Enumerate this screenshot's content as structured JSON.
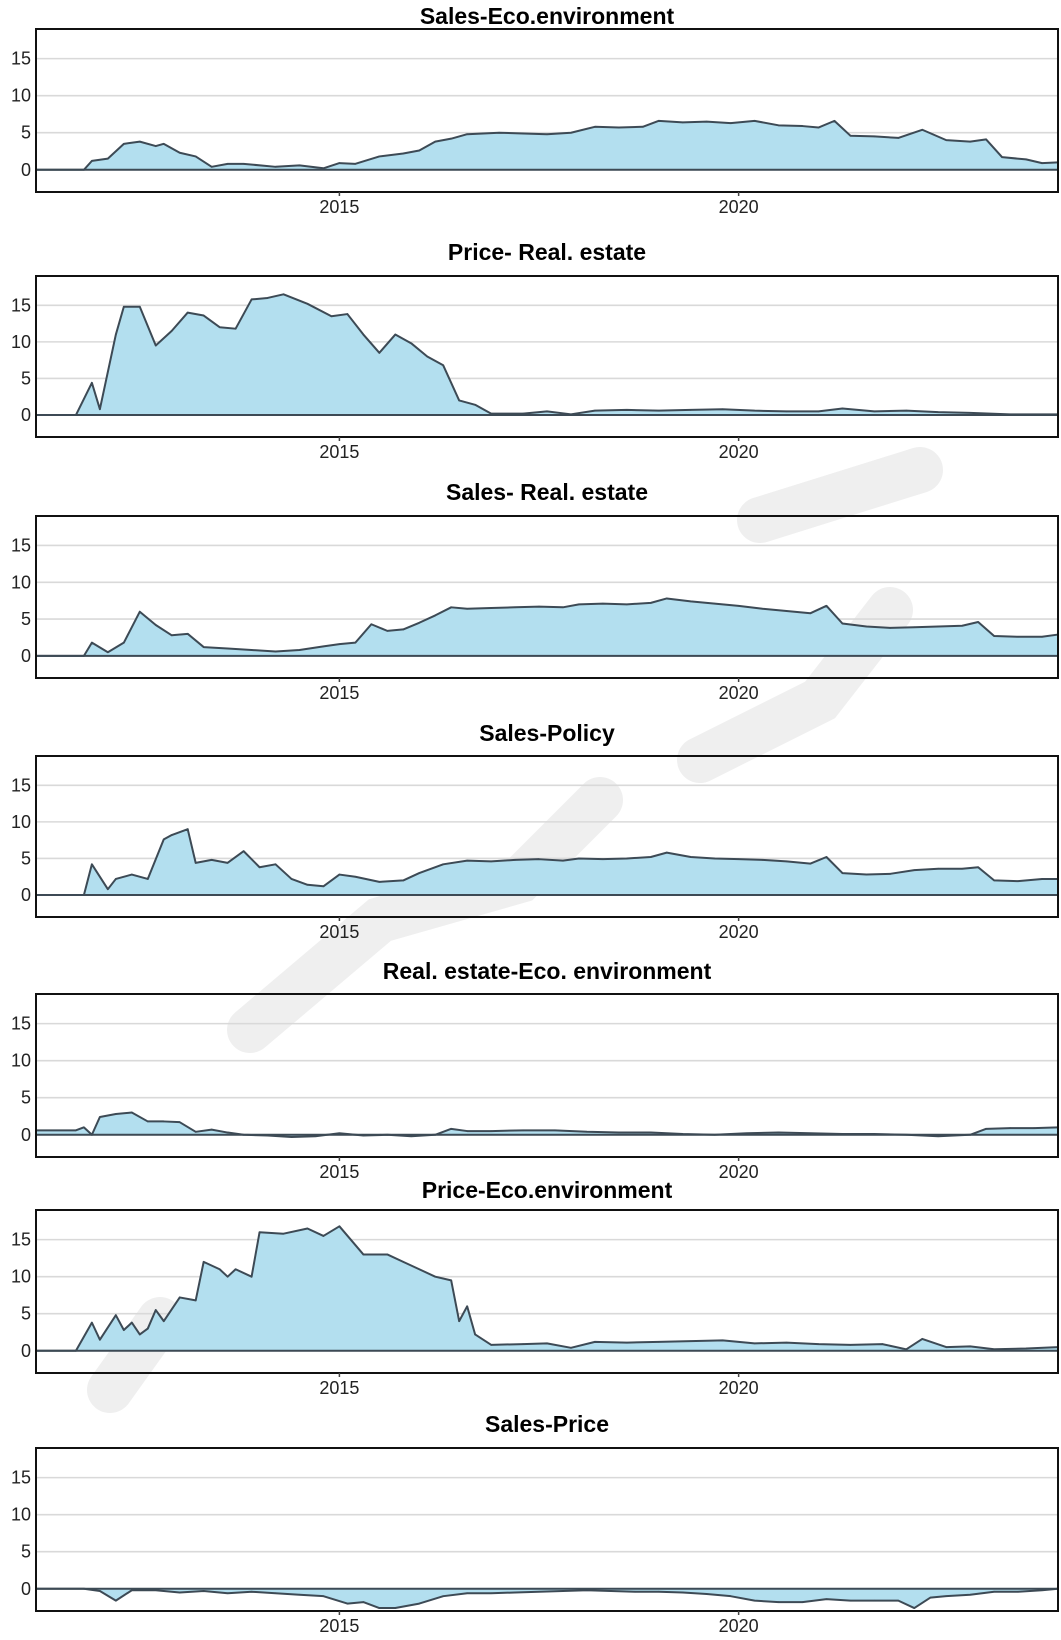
{
  "figure": {
    "background": "#ffffff",
    "fill_color": "#b3dfef",
    "line_color": "#3d4a55",
    "grid_color": "#d9d9d9"
  },
  "chart_data": [
    {
      "type": "area",
      "title": "Sales-Eco.environment",
      "xlim": [
        2011.2,
        2024.0
      ],
      "ylim": [
        -3,
        19
      ],
      "yticks": [
        0,
        5,
        10,
        15
      ],
      "xticks": [
        2015,
        2020
      ],
      "grid": true,
      "x": [
        2011.2,
        2011.8,
        2011.9,
        2012.1,
        2012.3,
        2012.5,
        2012.7,
        2012.8,
        2013.0,
        2013.2,
        2013.4,
        2013.6,
        2013.8,
        2014.2,
        2014.5,
        2014.8,
        2015.0,
        2015.2,
        2015.5,
        2015.8,
        2016.0,
        2016.2,
        2016.4,
        2016.6,
        2016.8,
        2017.0,
        2017.3,
        2017.6,
        2017.9,
        2018.2,
        2018.5,
        2018.8,
        2019.0,
        2019.3,
        2019.6,
        2019.9,
        2020.2,
        2020.5,
        2020.8,
        2021.0,
        2021.2,
        2021.4,
        2021.7,
        2022.0,
        2022.3,
        2022.6,
        2022.9,
        2023.1,
        2023.3,
        2023.6,
        2023.8,
        2024.0
      ],
      "y": [
        0,
        0,
        1.2,
        1.5,
        3.5,
        3.8,
        3.2,
        3.5,
        2.3,
        1.8,
        0.4,
        0.8,
        0.8,
        0.4,
        0.6,
        0.2,
        0.9,
        0.8,
        1.8,
        2.2,
        2.6,
        3.8,
        4.2,
        4.8,
        4.9,
        5.0,
        4.9,
        4.8,
        5.0,
        5.8,
        5.7,
        5.8,
        6.6,
        6.4,
        6.5,
        6.3,
        6.6,
        6.0,
        5.9,
        5.7,
        6.6,
        4.6,
        4.5,
        4.3,
        5.4,
        4.0,
        3.8,
        4.1,
        1.7,
        1.4,
        0.9,
        1.0
      ]
    },
    {
      "type": "area",
      "title": "Price- Real. estate",
      "xlim": [
        2011.2,
        2024.0
      ],
      "ylim": [
        -3,
        19
      ],
      "yticks": [
        0,
        5,
        10,
        15
      ],
      "xticks": [
        2015,
        2020
      ],
      "grid": true,
      "x": [
        2011.2,
        2011.7,
        2011.9,
        2012.0,
        2012.2,
        2012.3,
        2012.5,
        2012.7,
        2012.9,
        2013.1,
        2013.3,
        2013.5,
        2013.7,
        2013.9,
        2014.1,
        2014.3,
        2014.6,
        2014.9,
        2015.1,
        2015.3,
        2015.5,
        2015.7,
        2015.9,
        2016.1,
        2016.3,
        2016.5,
        2016.7,
        2016.9,
        2017.3,
        2017.6,
        2017.9,
        2018.2,
        2018.6,
        2019.0,
        2019.4,
        2019.8,
        2020.2,
        2020.6,
        2021.0,
        2021.3,
        2021.7,
        2022.1,
        2022.5,
        2022.9,
        2023.4,
        2024.0
      ],
      "y": [
        0,
        0,
        4.4,
        0.8,
        11.0,
        14.8,
        14.8,
        9.5,
        11.5,
        14.0,
        13.6,
        12.0,
        11.8,
        15.8,
        16.0,
        16.5,
        15.2,
        13.5,
        13.8,
        11.0,
        8.5,
        11.0,
        9.8,
        8.0,
        6.8,
        2.0,
        1.4,
        0.2,
        0.2,
        0.5,
        0.1,
        0.6,
        0.7,
        0.6,
        0.7,
        0.8,
        0.6,
        0.5,
        0.5,
        0.9,
        0.5,
        0.6,
        0.4,
        0.3,
        0.1,
        0.1
      ]
    },
    {
      "type": "area",
      "title": "Sales- Real. estate",
      "xlim": [
        2011.2,
        2024.0
      ],
      "ylim": [
        -3,
        19
      ],
      "yticks": [
        0,
        5,
        10,
        15
      ],
      "xticks": [
        2015,
        2020
      ],
      "grid": true,
      "x": [
        2011.2,
        2011.8,
        2011.9,
        2012.1,
        2012.3,
        2012.5,
        2012.7,
        2012.9,
        2013.1,
        2013.3,
        2013.6,
        2013.9,
        2014.2,
        2014.5,
        2014.8,
        2015.0,
        2015.2,
        2015.4,
        2015.6,
        2015.8,
        2016.0,
        2016.2,
        2016.4,
        2016.6,
        2016.9,
        2017.2,
        2017.5,
        2017.8,
        2018.0,
        2018.3,
        2018.6,
        2018.9,
        2019.1,
        2019.4,
        2019.7,
        2020.0,
        2020.3,
        2020.6,
        2020.9,
        2021.1,
        2021.3,
        2021.6,
        2021.9,
        2022.2,
        2022.5,
        2022.8,
        2023.0,
        2023.2,
        2023.5,
        2023.8,
        2024.0
      ],
      "y": [
        0,
        0,
        1.8,
        0.5,
        1.8,
        6.0,
        4.2,
        2.8,
        3.0,
        1.2,
        1.0,
        0.8,
        0.6,
        0.8,
        1.3,
        1.6,
        1.8,
        4.3,
        3.4,
        3.6,
        4.5,
        5.5,
        6.6,
        6.4,
        6.5,
        6.6,
        6.7,
        6.6,
        7.0,
        7.1,
        7.0,
        7.2,
        7.8,
        7.4,
        7.1,
        6.8,
        6.4,
        6.1,
        5.8,
        6.8,
        4.4,
        4.0,
        3.8,
        3.9,
        4.0,
        4.1,
        4.6,
        2.7,
        2.6,
        2.6,
        2.9
      ]
    },
    {
      "type": "area",
      "title": "Sales-Policy",
      "xlim": [
        2011.2,
        2024.0
      ],
      "ylim": [
        -3,
        19
      ],
      "yticks": [
        0,
        5,
        10,
        15
      ],
      "xticks": [
        2015,
        2020
      ],
      "grid": true,
      "x": [
        2011.2,
        2011.8,
        2011.9,
        2012.1,
        2012.2,
        2012.4,
        2012.6,
        2012.8,
        2012.9,
        2013.1,
        2013.2,
        2013.4,
        2013.6,
        2013.8,
        2014.0,
        2014.2,
        2014.4,
        2014.6,
        2014.8,
        2015.0,
        2015.2,
        2015.5,
        2015.8,
        2016.0,
        2016.3,
        2016.6,
        2016.9,
        2017.2,
        2017.5,
        2017.8,
        2018.0,
        2018.3,
        2018.6,
        2018.9,
        2019.1,
        2019.4,
        2019.7,
        2020.0,
        2020.3,
        2020.6,
        2020.9,
        2021.1,
        2021.3,
        2021.6,
        2021.9,
        2022.2,
        2022.5,
        2022.8,
        2023.0,
        2023.2,
        2023.5,
        2023.8,
        2024.0
      ],
      "y": [
        0,
        0,
        4.2,
        0.8,
        2.2,
        2.8,
        2.2,
        7.6,
        8.2,
        9.0,
        4.4,
        4.8,
        4.4,
        6.0,
        3.8,
        4.2,
        2.2,
        1.4,
        1.2,
        2.8,
        2.5,
        1.8,
        2.0,
        3.0,
        4.2,
        4.7,
        4.6,
        4.8,
        4.9,
        4.7,
        5.0,
        4.9,
        5.0,
        5.2,
        5.8,
        5.2,
        5.0,
        4.9,
        4.8,
        4.6,
        4.3,
        5.2,
        3.0,
        2.8,
        2.9,
        3.4,
        3.6,
        3.6,
        3.8,
        2.0,
        1.9,
        2.2,
        2.2
      ]
    },
    {
      "type": "area",
      "title": "Real. estate-Eco. environment",
      "xlim": [
        2011.2,
        2024.0
      ],
      "ylim": [
        -3,
        19
      ],
      "yticks": [
        0,
        5,
        10,
        15
      ],
      "xticks": [
        2015,
        2020
      ],
      "grid": true,
      "x": [
        2011.2,
        2011.7,
        2011.8,
        2011.9,
        2012.0,
        2012.2,
        2012.4,
        2012.6,
        2012.8,
        2013.0,
        2013.2,
        2013.4,
        2013.6,
        2013.8,
        2014.1,
        2014.4,
        2014.7,
        2015.0,
        2015.3,
        2015.6,
        2015.9,
        2016.2,
        2016.4,
        2016.6,
        2016.9,
        2017.3,
        2017.7,
        2018.1,
        2018.5,
        2018.9,
        2019.3,
        2019.7,
        2020.1,
        2020.5,
        2020.9,
        2021.3,
        2021.7,
        2022.1,
        2022.5,
        2022.9,
        2023.1,
        2023.4,
        2023.7,
        2024.0
      ],
      "y": [
        0.6,
        0.6,
        1.0,
        0.0,
        2.4,
        2.8,
        3.0,
        1.8,
        1.8,
        1.7,
        0.4,
        0.7,
        0.3,
        0.0,
        -0.1,
        -0.3,
        -0.2,
        0.2,
        -0.1,
        0.0,
        -0.2,
        0.0,
        0.8,
        0.5,
        0.5,
        0.6,
        0.6,
        0.4,
        0.3,
        0.3,
        0.1,
        0.0,
        0.2,
        0.3,
        0.2,
        0.1,
        0.1,
        0.0,
        -0.2,
        0.0,
        0.8,
        0.9,
        0.9,
        1.0
      ]
    },
    {
      "type": "area",
      "title": "Price-Eco.environment",
      "xlim": [
        2011.2,
        2024.0
      ],
      "ylim": [
        -3,
        19
      ],
      "yticks": [
        0,
        5,
        10,
        15
      ],
      "xticks": [
        2015,
        2020
      ],
      "grid": true,
      "x": [
        2011.2,
        2011.7,
        2011.9,
        2012.0,
        2012.2,
        2012.3,
        2012.4,
        2012.5,
        2012.6,
        2012.7,
        2012.8,
        2013.0,
        2013.2,
        2013.3,
        2013.5,
        2013.6,
        2013.7,
        2013.9,
        2014.0,
        2014.3,
        2014.6,
        2014.8,
        2015.0,
        2015.3,
        2015.6,
        2015.8,
        2016.0,
        2016.2,
        2016.4,
        2016.5,
        2016.6,
        2016.7,
        2016.9,
        2017.3,
        2017.6,
        2017.9,
        2018.2,
        2018.6,
        2019.0,
        2019.4,
        2019.8,
        2020.2,
        2020.6,
        2021.0,
        2021.4,
        2021.8,
        2022.1,
        2022.3,
        2022.6,
        2022.9,
        2023.2,
        2023.6,
        2024.0
      ],
      "y": [
        0,
        0,
        3.8,
        1.5,
        4.8,
        2.8,
        3.8,
        2.2,
        3.0,
        5.5,
        4.0,
        7.2,
        6.8,
        12.0,
        11.0,
        10.0,
        11.0,
        10.0,
        16.0,
        15.8,
        16.5,
        15.5,
        16.8,
        13.0,
        13.0,
        12.0,
        11.0,
        10.0,
        9.5,
        4.0,
        6.0,
        2.2,
        0.8,
        0.9,
        1.0,
        0.4,
        1.2,
        1.1,
        1.2,
        1.3,
        1.4,
        1.0,
        1.1,
        0.9,
        0.8,
        0.9,
        0.2,
        1.6,
        0.5,
        0.6,
        0.2,
        0.3,
        0.5
      ]
    },
    {
      "type": "area",
      "title": "Sales-Price",
      "xlim": [
        2011.2,
        2024.0
      ],
      "ylim": [
        -3,
        19
      ],
      "yticks": [
        0,
        5,
        10,
        15
      ],
      "xticks": [
        2015,
        2020
      ],
      "grid": true,
      "x": [
        2011.2,
        2011.8,
        2012.0,
        2012.2,
        2012.4,
        2012.7,
        2013.0,
        2013.3,
        2013.6,
        2013.9,
        2014.2,
        2014.5,
        2014.8,
        2015.1,
        2015.3,
        2015.5,
        2015.7,
        2016.0,
        2016.3,
        2016.6,
        2016.9,
        2017.2,
        2017.5,
        2017.8,
        2018.1,
        2018.4,
        2018.7,
        2019.0,
        2019.3,
        2019.6,
        2019.9,
        2020.2,
        2020.5,
        2020.8,
        2021.1,
        2021.4,
        2021.7,
        2022.0,
        2022.2,
        2022.4,
        2022.6,
        2022.9,
        2023.2,
        2023.5,
        2023.8,
        2024.0
      ],
      "y": [
        0,
        0,
        -0.3,
        -1.6,
        -0.2,
        -0.2,
        -0.5,
        -0.3,
        -0.6,
        -0.4,
        -0.6,
        -0.8,
        -1.0,
        -2.0,
        -1.8,
        -2.6,
        -2.6,
        -2.0,
        -1.0,
        -0.6,
        -0.6,
        -0.5,
        -0.4,
        -0.3,
        -0.2,
        -0.3,
        -0.4,
        -0.4,
        -0.5,
        -0.7,
        -1.0,
        -1.6,
        -1.8,
        -1.8,
        -1.4,
        -1.6,
        -1.6,
        -1.6,
        -2.6,
        -1.2,
        -1.0,
        -0.8,
        -0.4,
        -0.4,
        -0.2,
        0.0
      ]
    }
  ]
}
